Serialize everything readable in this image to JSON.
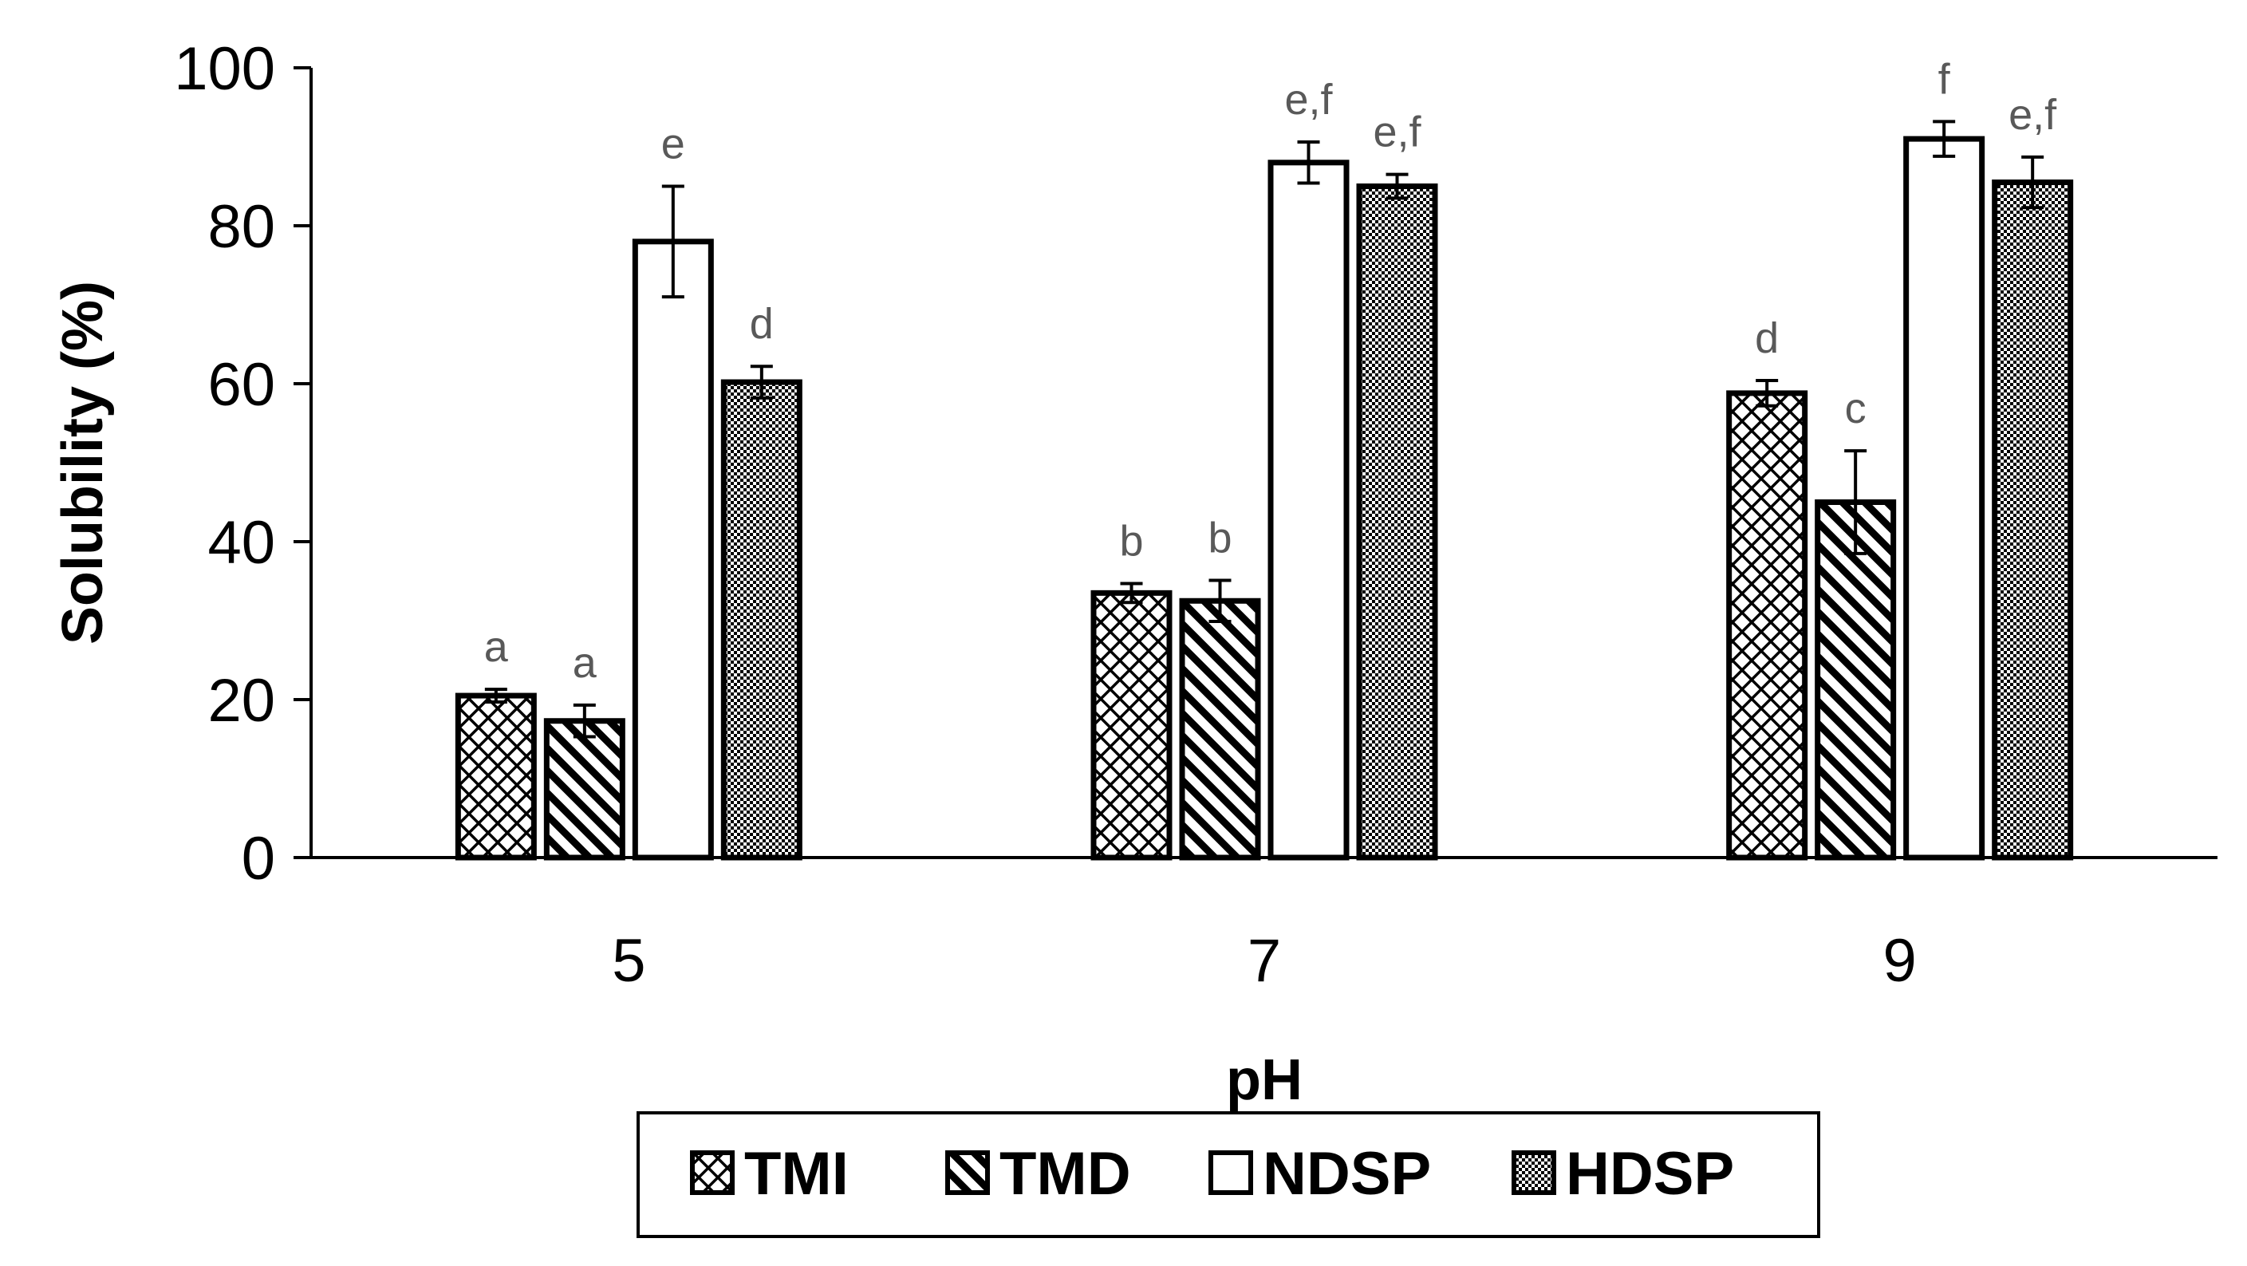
{
  "chart_data": {
    "type": "bar",
    "xlabel": "pH",
    "ylabel": "Solubility (%)",
    "ylim": [
      0,
      100
    ],
    "yticks": [
      0,
      20,
      40,
      60,
      80,
      100
    ],
    "categories": [
      "5",
      "7",
      "9"
    ],
    "legend_position": "bottom",
    "series": [
      {
        "name": "TMI",
        "pattern": "cross-hatch",
        "values": [
          20.5,
          33.5,
          58.8
        ],
        "errors": [
          0.8,
          1.2,
          1.6
        ],
        "labels": [
          "a",
          "b",
          "d"
        ]
      },
      {
        "name": "TMD",
        "pattern": "diagonal",
        "values": [
          17.3,
          32.5,
          45.0
        ],
        "errors": [
          2.0,
          2.6,
          6.5
        ],
        "labels": [
          "a",
          "b",
          "c"
        ]
      },
      {
        "name": "NDSP",
        "pattern": "none",
        "values": [
          78.0,
          88.0,
          91.0
        ],
        "errors": [
          7.0,
          2.6,
          2.2
        ],
        "labels": [
          "e",
          "e,f",
          "f"
        ]
      },
      {
        "name": "HDSP",
        "pattern": "dots",
        "values": [
          60.2,
          85.0,
          85.5
        ],
        "errors": [
          2.0,
          1.5,
          3.2
        ],
        "labels": [
          "d",
          "e,f",
          "e,f"
        ]
      }
    ],
    "colors": {
      "bar_border": "#000000",
      "bar_fill": "#ffffff",
      "label": "#595959"
    }
  }
}
